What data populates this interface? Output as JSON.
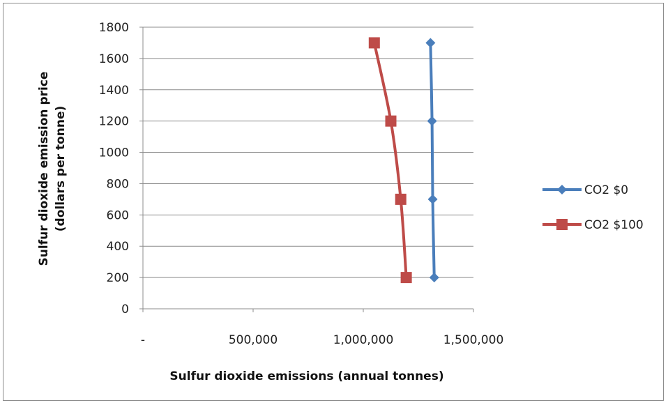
{
  "chart_data": {
    "type": "scatter",
    "xlabel": "Sulfur dioxide emissions (annual tonnes)",
    "ylabel_line1": "Sulfur dioxide emission price",
    "ylabel_line2": "(dollars per tonne)",
    "xlim": [
      0,
      1500000
    ],
    "ylim": [
      0,
      1800
    ],
    "x_ticks": [
      {
        "value": 0,
        "label": "-"
      },
      {
        "value": 500000,
        "label": "500,000"
      },
      {
        "value": 1000000,
        "label": "1,000,000"
      },
      {
        "value": 1500000,
        "label": "1,500,000"
      }
    ],
    "y_ticks": [
      0,
      200,
      400,
      600,
      800,
      1000,
      1200,
      1400,
      1600,
      1800
    ],
    "grid": "horizontal",
    "legend_position": "right",
    "series": [
      {
        "name": "CO2 $0",
        "color": "#4a7ebb",
        "marker": "diamond",
        "points": [
          {
            "x": 1305000,
            "y": 1700
          },
          {
            "x": 1312000,
            "y": 1200
          },
          {
            "x": 1315000,
            "y": 700
          },
          {
            "x": 1322000,
            "y": 200
          }
        ]
      },
      {
        "name": "CO2 $100",
        "color": "#be4b48",
        "marker": "square",
        "points": [
          {
            "x": 1050000,
            "y": 1700
          },
          {
            "x": 1125000,
            "y": 1200
          },
          {
            "x": 1170000,
            "y": 700
          },
          {
            "x": 1195000,
            "y": 200
          }
        ]
      }
    ]
  }
}
